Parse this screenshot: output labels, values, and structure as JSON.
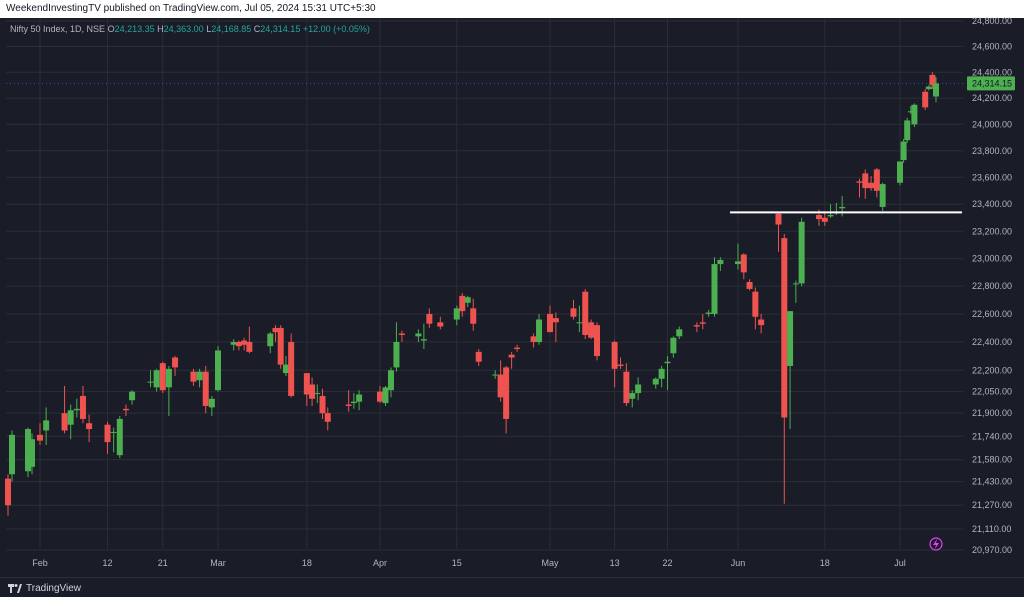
{
  "header": {
    "published_text": "WeekendInvestingTV published on TradingView.com, Jul 05, 2024 15:31 UTC+5:30"
  },
  "legend": {
    "symbol": "Nifty 50 Index, 1D, NSE",
    "o_label": "O",
    "o_value": "24,213.35",
    "h_label": "H",
    "h_value": "24,363.00",
    "l_label": "L",
    "l_value": "24,168.85",
    "c_label": "C",
    "c_value": "24,314.15",
    "change": "+12.00 (+0.05%)"
  },
  "price_tag": "24,314.15",
  "footer": {
    "brand": "TradingView"
  },
  "colors": {
    "up": "#26a69a",
    "down": "#ef5350",
    "up_body": "#4caf50",
    "background": "#1a1c27",
    "grid": "#2a2e39",
    "hline": "#ffffff",
    "price_tag_bg": "#4caf50"
  },
  "chart_data": {
    "type": "candlestick",
    "title": "Nifty 50 Index, 1D, NSE",
    "y_axis": {
      "scale": "log",
      "ticks": [
        {
          "value": 24800,
          "label": "24,800.00"
        },
        {
          "value": 24600,
          "label": "24,600.00"
        },
        {
          "value": 24400,
          "label": "24,400.00"
        },
        {
          "value": 24200,
          "label": "24,200.00"
        },
        {
          "value": 24000,
          "label": "24,000.00"
        },
        {
          "value": 23800,
          "label": "23,800.00"
        },
        {
          "value": 23600,
          "label": "23,600.00"
        },
        {
          "value": 23400,
          "label": "23,400.00"
        },
        {
          "value": 23200,
          "label": "23,200.00"
        },
        {
          "value": 23000,
          "label": "23,000.00"
        },
        {
          "value": 22800,
          "label": "22,800.00"
        },
        {
          "value": 22600,
          "label": "22,600.00"
        },
        {
          "value": 22400,
          "label": "22,400.00"
        },
        {
          "value": 22200,
          "label": "22,200.00"
        },
        {
          "value": 22050,
          "label": "22,050.00"
        },
        {
          "value": 21900,
          "label": "21,900.00"
        },
        {
          "value": 21740,
          "label": "21,740.00"
        },
        {
          "value": 21580,
          "label": "21,580.00"
        },
        {
          "value": 21430,
          "label": "21,430.00"
        },
        {
          "value": 21270,
          "label": "21,270.00"
        },
        {
          "value": 21110,
          "label": "21,110.00"
        },
        {
          "value": 20970,
          "label": "20,970.00"
        }
      ],
      "range": [
        20940,
        24860
      ]
    },
    "x_axis": {
      "labels": [
        {
          "label": "Feb",
          "date": "2024-02-01"
        },
        {
          "label": "12",
          "date": "2024-02-12"
        },
        {
          "label": "21",
          "date": "2024-02-21"
        },
        {
          "label": "Mar",
          "date": "2024-03-01"
        },
        {
          "label": "18",
          "date": "2024-03-18"
        },
        {
          "label": "Apr",
          "date": "2024-04-01"
        },
        {
          "label": "15",
          "date": "2024-04-15"
        },
        {
          "label": "May",
          "date": "2024-05-02"
        },
        {
          "label": "13",
          "date": "2024-05-13"
        },
        {
          "label": "22",
          "date": "2024-05-22"
        },
        {
          "label": "Jun",
          "date": "2024-06-03"
        },
        {
          "label": "18",
          "date": "2024-06-18"
        },
        {
          "label": "Jul",
          "date": "2024-07-01"
        }
      ]
    },
    "horizontal_line": 23340,
    "last_price": 24314.15,
    "candles": [
      {
        "date": "2024-01-24",
        "o": 21450,
        "h": 21480,
        "l": 21200,
        "c": 21270
      },
      {
        "date": "2024-01-25",
        "o": 21480,
        "h": 21780,
        "l": 21430,
        "c": 21750
      },
      {
        "date": "2024-01-29",
        "o": 21500,
        "h": 21800,
        "l": 21460,
        "c": 21790
      },
      {
        "date": "2024-01-30",
        "o": 21530,
        "h": 21760,
        "l": 21480,
        "c": 21720
      },
      {
        "date": "2024-02-01",
        "o": 21750,
        "h": 21830,
        "l": 21680,
        "c": 21710
      },
      {
        "date": "2024-02-02",
        "o": 21780,
        "h": 21940,
        "l": 21680,
        "c": 21850
      },
      {
        "date": "2024-02-05",
        "o": 21900,
        "h": 22090,
        "l": 21760,
        "c": 21780
      },
      {
        "date": "2024-02-06",
        "o": 21820,
        "h": 21960,
        "l": 21720,
        "c": 21920
      },
      {
        "date": "2024-02-07",
        "o": 21920,
        "h": 22000,
        "l": 21870,
        "c": 21930
      },
      {
        "date": "2024-02-08",
        "o": 22020,
        "h": 22090,
        "l": 21830,
        "c": 21860
      },
      {
        "date": "2024-02-09",
        "o": 21830,
        "h": 21890,
        "l": 21700,
        "c": 21790
      },
      {
        "date": "2024-02-12",
        "o": 21820,
        "h": 21840,
        "l": 21620,
        "c": 21700
      },
      {
        "date": "2024-02-13",
        "o": 21770,
        "h": 21800,
        "l": 21630,
        "c": 21770
      },
      {
        "date": "2024-02-14",
        "o": 21610,
        "h": 21880,
        "l": 21590,
        "c": 21860
      },
      {
        "date": "2024-02-15",
        "o": 21930,
        "h": 21960,
        "l": 21880,
        "c": 21920
      },
      {
        "date": "2024-02-16",
        "o": 21990,
        "h": 22060,
        "l": 21960,
        "c": 22050
      },
      {
        "date": "2024-02-19",
        "o": 22120,
        "h": 22200,
        "l": 22080,
        "c": 22120
      },
      {
        "date": "2024-02-20",
        "o": 22080,
        "h": 22210,
        "l": 22050,
        "c": 22200
      },
      {
        "date": "2024-02-21",
        "o": 22250,
        "h": 22260,
        "l": 22040,
        "c": 22060
      },
      {
        "date": "2024-02-22",
        "o": 22080,
        "h": 22230,
        "l": 21880,
        "c": 22210
      },
      {
        "date": "2024-02-23",
        "o": 22290,
        "h": 22300,
        "l": 22160,
        "c": 22220
      },
      {
        "date": "2024-02-26",
        "o": 22190,
        "h": 22210,
        "l": 22090,
        "c": 22120
      },
      {
        "date": "2024-02-27",
        "o": 22130,
        "h": 22210,
        "l": 22080,
        "c": 22190
      },
      {
        "date": "2024-02-28",
        "o": 22190,
        "h": 22230,
        "l": 21900,
        "c": 21950
      },
      {
        "date": "2024-02-29",
        "o": 21940,
        "h": 22020,
        "l": 21880,
        "c": 22000
      },
      {
        "date": "2024-03-01",
        "o": 22060,
        "h": 22370,
        "l": 22050,
        "c": 22340
      },
      {
        "date": "2024-03-04",
        "o": 22380,
        "h": 22420,
        "l": 22340,
        "c": 22400
      },
      {
        "date": "2024-03-05",
        "o": 22400,
        "h": 22410,
        "l": 22340,
        "c": 22370
      },
      {
        "date": "2024-03-06",
        "o": 22410,
        "h": 22430,
        "l": 22340,
        "c": 22380
      },
      {
        "date": "2024-03-07",
        "o": 22400,
        "h": 22510,
        "l": 22320,
        "c": 22330
      },
      {
        "date": "2024-03-11",
        "o": 22370,
        "h": 22470,
        "l": 22320,
        "c": 22460
      },
      {
        "date": "2024-03-12",
        "o": 22500,
        "h": 22520,
        "l": 22400,
        "c": 22470
      },
      {
        "date": "2024-03-13",
        "o": 22500,
        "h": 22520,
        "l": 22210,
        "c": 22240
      },
      {
        "date": "2024-03-14",
        "o": 22180,
        "h": 22300,
        "l": 22160,
        "c": 22240
      },
      {
        "date": "2024-03-15",
        "o": 22400,
        "h": 22460,
        "l": 22010,
        "c": 22020
      },
      {
        "date": "2024-03-18",
        "o": 22180,
        "h": 22180,
        "l": 21950,
        "c": 22030
      },
      {
        "date": "2024-03-19",
        "o": 22100,
        "h": 22150,
        "l": 21950,
        "c": 22000
      },
      {
        "date": "2024-03-20",
        "o": 22040,
        "h": 22100,
        "l": 21970,
        "c": 22040
      },
      {
        "date": "2024-03-21",
        "o": 22020,
        "h": 22070,
        "l": 21860,
        "c": 21900
      },
      {
        "date": "2024-03-22",
        "o": 21900,
        "h": 21940,
        "l": 21780,
        "c": 21840
      },
      {
        "date": "2024-03-26",
        "o": 21960,
        "h": 22060,
        "l": 21910,
        "c": 21950
      },
      {
        "date": "2024-03-27",
        "o": 21970,
        "h": 22040,
        "l": 21930,
        "c": 21980
      },
      {
        "date": "2024-03-28",
        "o": 21980,
        "h": 22060,
        "l": 21920,
        "c": 22030
      },
      {
        "date": "2024-04-01",
        "o": 22050,
        "h": 22090,
        "l": 21970,
        "c": 21980
      },
      {
        "date": "2024-04-02",
        "o": 21970,
        "h": 22090,
        "l": 21950,
        "c": 22080
      },
      {
        "date": "2024-04-03",
        "o": 22060,
        "h": 22220,
        "l": 22010,
        "c": 22200
      },
      {
        "date": "2024-04-04",
        "o": 22220,
        "h": 22540,
        "l": 22190,
        "c": 22400
      },
      {
        "date": "2024-04-05",
        "o": 22460,
        "h": 22480,
        "l": 22400,
        "c": 22450
      },
      {
        "date": "2024-04-08",
        "o": 22440,
        "h": 22490,
        "l": 22400,
        "c": 22460
      },
      {
        "date": "2024-04-09",
        "o": 22410,
        "h": 22530,
        "l": 22350,
        "c": 22420
      },
      {
        "date": "2024-04-10",
        "o": 22600,
        "h": 22640,
        "l": 22500,
        "c": 22530
      },
      {
        "date": "2024-04-12",
        "o": 22540,
        "h": 22580,
        "l": 22490,
        "c": 22510
      },
      {
        "date": "2024-04-15",
        "o": 22560,
        "h": 22660,
        "l": 22520,
        "c": 22640
      },
      {
        "date": "2024-04-16",
        "o": 22730,
        "h": 22750,
        "l": 22580,
        "c": 22620
      },
      {
        "date": "2024-04-17",
        "o": 22680,
        "h": 22730,
        "l": 22650,
        "c": 22720
      },
      {
        "date": "2024-04-18",
        "o": 22640,
        "h": 22710,
        "l": 22480,
        "c": 22530
      },
      {
        "date": "2024-04-19",
        "o": 22330,
        "h": 22350,
        "l": 22230,
        "c": 22260
      },
      {
        "date": "2024-04-22",
        "o": 22170,
        "h": 22200,
        "l": 22140,
        "c": 22170
      },
      {
        "date": "2024-04-23",
        "o": 22170,
        "h": 22270,
        "l": 21980,
        "c": 22010
      },
      {
        "date": "2024-04-24",
        "o": 22220,
        "h": 22230,
        "l": 21760,
        "c": 21860
      },
      {
        "date": "2024-04-25",
        "o": 22310,
        "h": 22330,
        "l": 22210,
        "c": 22290
      },
      {
        "date": "2024-04-26",
        "o": 22360,
        "h": 22380,
        "l": 22330,
        "c": 22350
      },
      {
        "date": "2024-04-29",
        "o": 22440,
        "h": 22460,
        "l": 22360,
        "c": 22400
      },
      {
        "date": "2024-04-30",
        "o": 22400,
        "h": 22600,
        "l": 22380,
        "c": 22560
      },
      {
        "date": "2024-05-02",
        "o": 22600,
        "h": 22660,
        "l": 22470,
        "c": 22470
      },
      {
        "date": "2024-05-03",
        "o": 22570,
        "h": 22610,
        "l": 22400,
        "c": 22540
      },
      {
        "date": "2024-05-06",
        "o": 22640,
        "h": 22700,
        "l": 22560,
        "c": 22580
      },
      {
        "date": "2024-05-07",
        "o": 22540,
        "h": 22660,
        "l": 22470,
        "c": 22540
      },
      {
        "date": "2024-05-08",
        "o": 22760,
        "h": 22780,
        "l": 22420,
        "c": 22450
      },
      {
        "date": "2024-05-09",
        "o": 22540,
        "h": 22560,
        "l": 22420,
        "c": 22430
      },
      {
        "date": "2024-05-10",
        "o": 22520,
        "h": 22540,
        "l": 22270,
        "c": 22300
      },
      {
        "date": "2024-05-13",
        "o": 22400,
        "h": 22410,
        "l": 22080,
        "c": 22210
      },
      {
        "date": "2024-05-14",
        "o": 22240,
        "h": 22290,
        "l": 22210,
        "c": 22230
      },
      {
        "date": "2024-05-15",
        "o": 22190,
        "h": 22250,
        "l": 21950,
        "c": 21970
      },
      {
        "date": "2024-05-16",
        "o": 22000,
        "h": 22060,
        "l": 21940,
        "c": 22040
      },
      {
        "date": "2024-05-17",
        "o": 22040,
        "h": 22150,
        "l": 21990,
        "c": 22100
      },
      {
        "date": "2024-05-20",
        "o": 22100,
        "h": 22150,
        "l": 22070,
        "c": 22140
      },
      {
        "date": "2024-05-21",
        "o": 22140,
        "h": 22230,
        "l": 22080,
        "c": 22210
      },
      {
        "date": "2024-05-22",
        "o": 22250,
        "h": 22300,
        "l": 22060,
        "c": 22260
      },
      {
        "date": "2024-05-23",
        "o": 22320,
        "h": 22440,
        "l": 22290,
        "c": 22430
      },
      {
        "date": "2024-05-24",
        "o": 22440,
        "h": 22510,
        "l": 22420,
        "c": 22490
      },
      {
        "date": "2024-05-27",
        "o": 22520,
        "h": 22540,
        "l": 22470,
        "c": 22510
      },
      {
        "date": "2024-05-28",
        "o": 22540,
        "h": 22600,
        "l": 22490,
        "c": 22530
      },
      {
        "date": "2024-05-29",
        "o": 22600,
        "h": 22630,
        "l": 22580,
        "c": 22610
      },
      {
        "date": "2024-05-30",
        "o": 22600,
        "h": 23010,
        "l": 22580,
        "c": 22960
      },
      {
        "date": "2024-05-31",
        "o": 22960,
        "h": 23010,
        "l": 22910,
        "c": 22990
      },
      {
        "date": "2024-06-03",
        "o": 22960,
        "h": 23110,
        "l": 22920,
        "c": 22980
      },
      {
        "date": "2024-06-04",
        "o": 23030,
        "h": 23040,
        "l": 22850,
        "c": 22900
      },
      {
        "date": "2024-06-05",
        "o": 22830,
        "h": 22850,
        "l": 22770,
        "c": 22780
      },
      {
        "date": "2024-06-06",
        "o": 22760,
        "h": 22790,
        "l": 22490,
        "c": 22580
      },
      {
        "date": "2024-06-07",
        "o": 22560,
        "h": 22600,
        "l": 22460,
        "c": 22520
      },
      {
        "date": "2024-06-10",
        "o": 23330,
        "h": 23340,
        "l": 23050,
        "c": 23250
      },
      {
        "date": "2024-06-11",
        "o": 23150,
        "h": 23180,
        "l": 21280,
        "c": 21870
      },
      {
        "date": "2024-06-12",
        "o": 22230,
        "h": 22620,
        "l": 21790,
        "c": 22620
      },
      {
        "date": "2024-06-13",
        "o": 22820,
        "h": 22840,
        "l": 22680,
        "c": 22820
      },
      {
        "date": "2024-06-14",
        "o": 22820,
        "h": 23300,
        "l": 22800,
        "c": 23270
      },
      {
        "date": "2024-06-17",
        "o": 23320,
        "h": 23360,
        "l": 23240,
        "c": 23290
      },
      {
        "date": "2024-06-18",
        "o": 23300,
        "h": 23340,
        "l": 23240,
        "c": 23270
      },
      {
        "date": "2024-06-19",
        "o": 23310,
        "h": 23400,
        "l": 23300,
        "c": 23320
      },
      {
        "date": "2024-06-20",
        "o": 23340,
        "h": 23410,
        "l": 23320,
        "c": 23340
      },
      {
        "date": "2024-06-21",
        "o": 23370,
        "h": 23460,
        "l": 23310,
        "c": 23380
      },
      {
        "date": "2024-06-24",
        "o": 23570,
        "h": 23590,
        "l": 23450,
        "c": 23560
      },
      {
        "date": "2024-06-25",
        "o": 23630,
        "h": 23660,
        "l": 23440,
        "c": 23520
      },
      {
        "date": "2024-06-26",
        "o": 23560,
        "h": 23610,
        "l": 23500,
        "c": 23520
      },
      {
        "date": "2024-06-27",
        "o": 23660,
        "h": 23670,
        "l": 23450,
        "c": 23500
      },
      {
        "date": "2024-06-28",
        "o": 23380,
        "h": 23560,
        "l": 23350,
        "c": 23550
      },
      {
        "date": "2024-07-01",
        "o": 23560,
        "h": 23720,
        "l": 23540,
        "c": 23720
      },
      {
        "date": "2024-07-02",
        "o": 23730,
        "h": 23890,
        "l": 23710,
        "c": 23870
      },
      {
        "date": "2024-07-03",
        "o": 23880,
        "h": 24050,
        "l": 23860,
        "c": 24030
      },
      {
        "date": "2024-07-04",
        "o": 24100,
        "h": 24140,
        "l": 24080,
        "c": 24100
      },
      {
        "date": "2024-07-05",
        "o": 24000,
        "h": 24160,
        "l": 23980,
        "c": 24150
      },
      {
        "date": "2024-07-08",
        "o": 24250,
        "h": 24270,
        "l": 24110,
        "c": 24130
      },
      {
        "date": "2024-07-09",
        "o": 24270,
        "h": 24300,
        "l": 24260,
        "c": 24290
      },
      {
        "date": "2024-07-10",
        "o": 24380,
        "h": 24400,
        "l": 24270,
        "c": 24300
      },
      {
        "date": "2024-07-11",
        "o": 24213.35,
        "h": 24363,
        "l": 24168.85,
        "c": 24314.15
      }
    ]
  }
}
